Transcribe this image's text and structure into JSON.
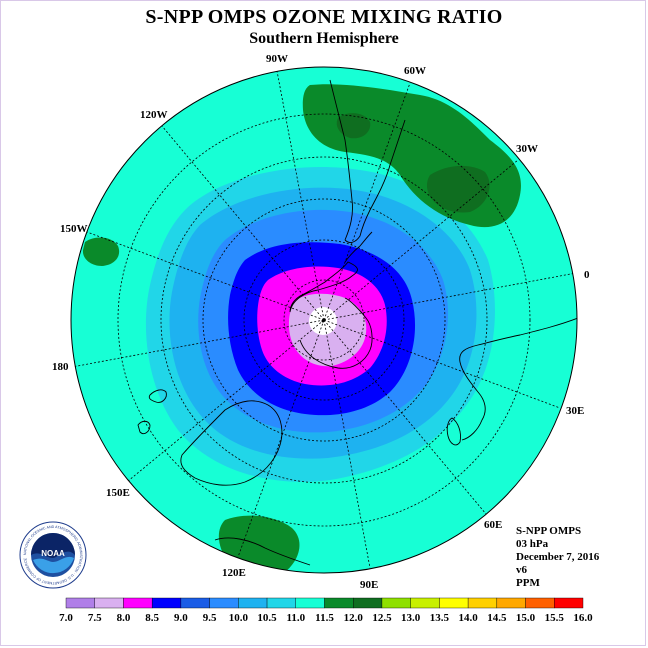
{
  "header": {
    "title": "S-NPP OMPS OZONE MIXING RATIO",
    "subtitle": "Southern Hemisphere"
  },
  "longitude_labels": [
    "90W",
    "60W",
    "30W",
    "0",
    "30E",
    "60E",
    "90E",
    "120E",
    "150E",
    "180",
    "150W",
    "120W"
  ],
  "info": {
    "instrument": "S-NPP OMPS",
    "level": "03 hPa",
    "date": "December 7, 2016",
    "version": "v6",
    "units": "PPM"
  },
  "colorbar": {
    "ticks": [
      "7.0",
      "7.5",
      "8.0",
      "8.5",
      "9.0",
      "9.5",
      "10.0",
      "10.5",
      "11.0",
      "11.5",
      "12.0",
      "12.5",
      "13.0",
      "13.5",
      "14.0",
      "14.5",
      "15.0",
      "15.5",
      "16.0"
    ],
    "colors": [
      "#b07fe8",
      "#d9b0f0",
      "#ff00ff",
      "#0000ff",
      "#1a5ce6",
      "#2a8cff",
      "#1eb2f0",
      "#21d6e8",
      "#17ffd5",
      "#0a8a2a",
      "#0f6e20",
      "#8fe000",
      "#c8f000",
      "#ffff00",
      "#ffd000",
      "#ffa800",
      "#ff6000",
      "#ff0000",
      "#a0522d"
    ]
  },
  "logo": {
    "text": "NOAA",
    "ring_text": "NATIONAL OCEANIC AND ATMOSPHERIC ADMINISTRATION · U.S. DEPARTMENT OF COMMERCE"
  },
  "map_colors": {
    "outer": "#17ffd5",
    "ring1": "#21d6e8",
    "ring2": "#1eb2f0",
    "ring3": "#2a8cff",
    "ring4": "#0000ff",
    "ring5": "#ff00ff",
    "center": "#d9b0f0",
    "high": "#0a8a2a",
    "higher": "#0f6e20"
  }
}
